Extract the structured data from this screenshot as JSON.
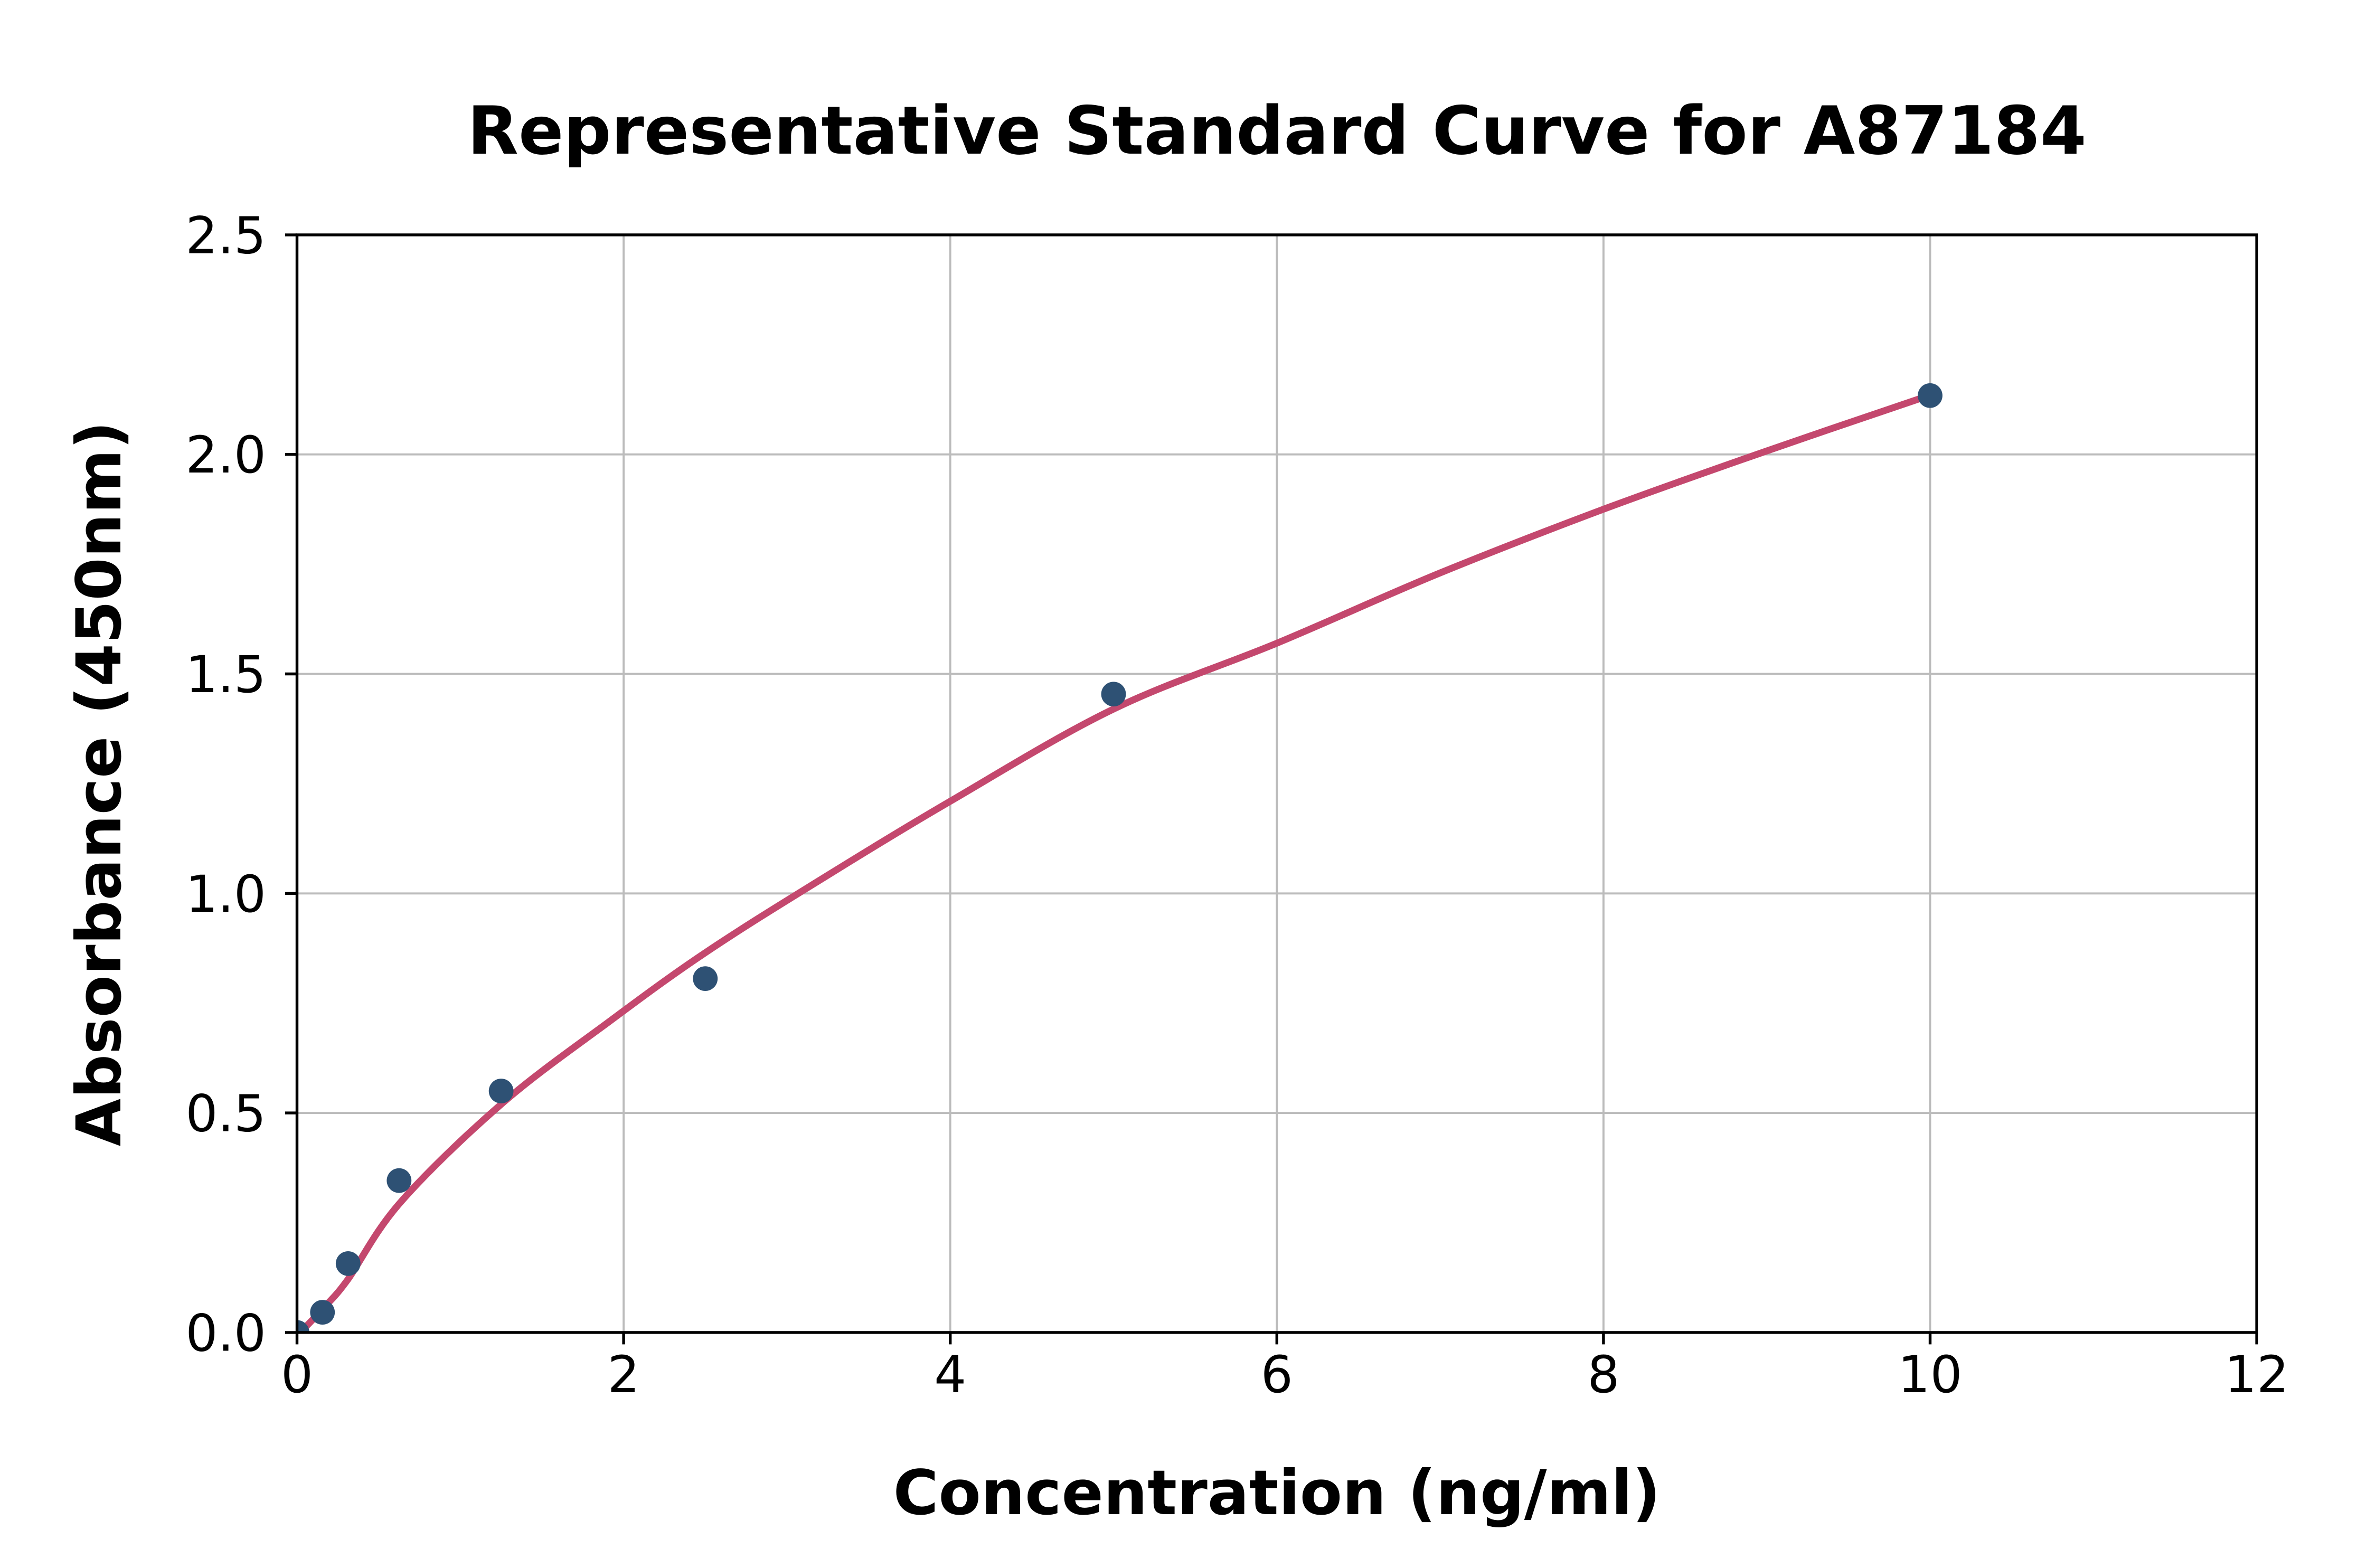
{
  "page": {
    "background_color": "#ffffff"
  },
  "chart_data": {
    "type": "scatter",
    "title": "Representative Standard Curve for A87184",
    "xlabel": "Concentration (ng/ml)",
    "ylabel": "Absorbance (450nm)",
    "xlim": [
      0,
      12
    ],
    "ylim": [
      0,
      2.5
    ],
    "xticks": [
      0,
      2,
      4,
      6,
      8,
      10,
      12
    ],
    "xtick_labels": [
      "0",
      "2",
      "4",
      "6",
      "8",
      "10",
      "12"
    ],
    "yticks": [
      0,
      0.5,
      1,
      1.5,
      2,
      2.5
    ],
    "ytick_labels": [
      "0.0",
      "0.5",
      "1.0",
      "1.5",
      "2.0",
      "2.5"
    ],
    "grid": true,
    "legend": "none",
    "series": [
      {
        "name": "standard-points",
        "type": "scatter",
        "points": [
          {
            "x": 0,
            "y": 0.0
          },
          {
            "x": 0.156,
            "y": 0.046
          },
          {
            "x": 0.313,
            "y": 0.157
          },
          {
            "x": 0.625,
            "y": 0.346
          },
          {
            "x": 1.25,
            "y": 0.55
          },
          {
            "x": 2.5,
            "y": 0.806
          },
          {
            "x": 5,
            "y": 1.454
          },
          {
            "x": 10,
            "y": 2.134
          }
        ]
      },
      {
        "name": "fitted-curve",
        "type": "line",
        "points": [
          {
            "x": 0.02,
            "y": 0.0
          },
          {
            "x": 0.16,
            "y": 0.055
          },
          {
            "x": 0.31,
            "y": 0.12
          },
          {
            "x": 0.63,
            "y": 0.295
          },
          {
            "x": 1.25,
            "y": 0.52
          },
          {
            "x": 1.9,
            "y": 0.705
          },
          {
            "x": 2.5,
            "y": 0.865
          },
          {
            "x": 3.2,
            "y": 1.03
          },
          {
            "x": 4.0,
            "y": 1.21
          },
          {
            "x": 5.0,
            "y": 1.42
          },
          {
            "x": 6.0,
            "y": 1.57
          },
          {
            "x": 7.0,
            "y": 1.73
          },
          {
            "x": 8.0,
            "y": 1.875
          },
          {
            "x": 9.0,
            "y": 2.008
          },
          {
            "x": 10.0,
            "y": 2.135
          }
        ]
      }
    ],
    "colors": {
      "point": "#2E5174",
      "curve": "#C4486E",
      "grid": "#BCBCBC",
      "axis": "#000000",
      "text": "#000000",
      "background": "#FFFFFF"
    }
  }
}
